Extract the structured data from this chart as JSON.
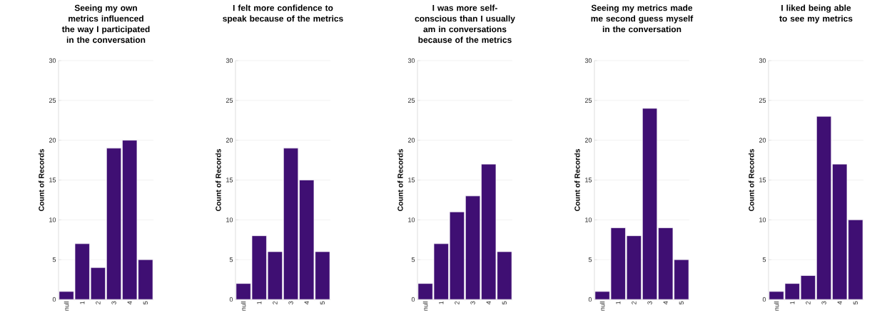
{
  "chart_data": [
    {
      "type": "bar",
      "title": "Seeing my own metrics influenced the way I participated in the conversation",
      "ylabel": "Count of Records",
      "categories": [
        "null",
        "1",
        "2",
        "3",
        "4",
        "5"
      ],
      "values": [
        1,
        7,
        4,
        19,
        20,
        5
      ],
      "color": "#3f0f73",
      "ylim": [
        0,
        30
      ],
      "yticks": [
        0,
        5,
        10,
        15,
        20,
        25,
        30
      ],
      "grid": "y"
    },
    {
      "type": "bar",
      "title": "I felt more confidence to speak because of the metrics",
      "ylabel": "Count of Records",
      "categories": [
        "null",
        "1",
        "2",
        "3",
        "4",
        "5"
      ],
      "values": [
        2,
        8,
        6,
        19,
        15,
        6
      ],
      "color": "#3f0f73",
      "ylim": [
        0,
        30
      ],
      "yticks": [
        0,
        5,
        10,
        15,
        20,
        25,
        30
      ],
      "grid": "y"
    },
    {
      "type": "bar",
      "title": "I was more self-conscious than I usually am in conversations because of the metrics",
      "ylabel": "Count of Records",
      "categories": [
        "null",
        "1",
        "2",
        "3",
        "4",
        "5"
      ],
      "values": [
        2,
        7,
        11,
        13,
        17,
        6
      ],
      "color": "#3f0f73",
      "ylim": [
        0,
        30
      ],
      "yticks": [
        0,
        5,
        10,
        15,
        20,
        25,
        30
      ],
      "grid": "y"
    },
    {
      "type": "bar",
      "title": "Seeing my metrics made me second guess myself in the conversation",
      "ylabel": "Count of Records",
      "categories": [
        "null",
        "1",
        "2",
        "3",
        "4",
        "5"
      ],
      "values": [
        1,
        9,
        8,
        24,
        9,
        5
      ],
      "color": "#3f0f73",
      "ylim": [
        0,
        30
      ],
      "yticks": [
        0,
        5,
        10,
        15,
        20,
        25,
        30
      ],
      "grid": "y"
    },
    {
      "type": "bar",
      "title": "I liked being able to see my metrics",
      "ylabel": "Count of Records",
      "categories": [
        "null",
        "1",
        "2",
        "3",
        "4",
        "5"
      ],
      "values": [
        1,
        2,
        3,
        23,
        17,
        10
      ],
      "color": "#3f0f73",
      "ylim": [
        0,
        30
      ],
      "yticks": [
        0,
        5,
        10,
        15,
        20,
        25,
        30
      ],
      "grid": "y"
    }
  ]
}
